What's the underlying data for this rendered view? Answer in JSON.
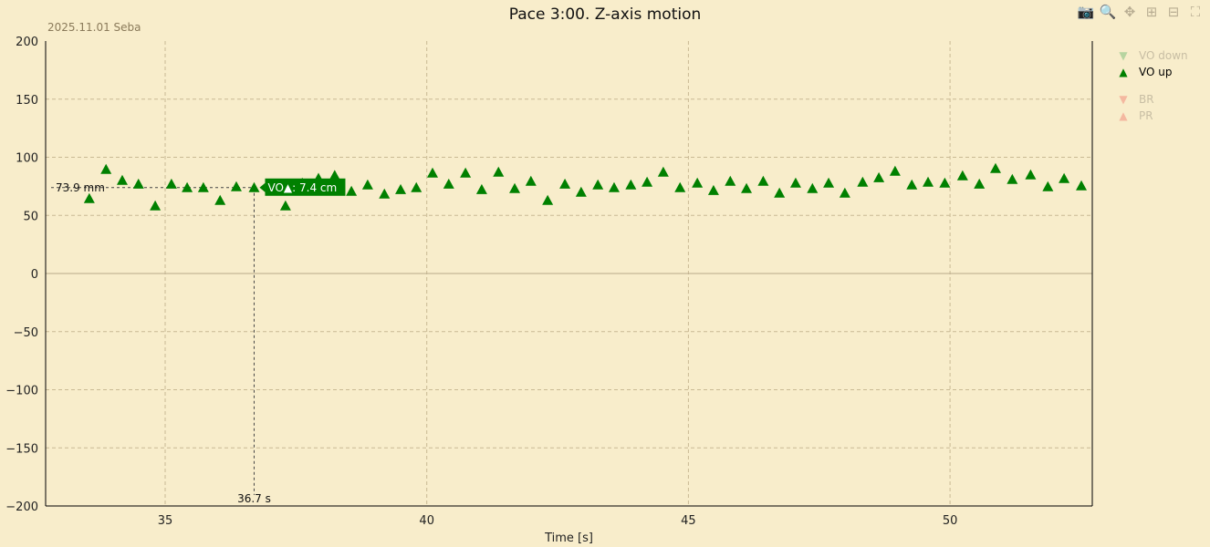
{
  "title": "Pace 3:00. Z-axis motion",
  "subtitle": "2025.11.01 Seba",
  "modebar": [
    "camera-icon",
    "zoom-icon",
    "pan-icon",
    "zoom-in-icon",
    "zoom-out-icon",
    "autoscale-icon"
  ],
  "legend": [
    {
      "label": "VO down",
      "symbol": "▼",
      "color": "#b7d4a0",
      "visible": false
    },
    {
      "label": "VO up",
      "symbol": "▲",
      "color": "#008000",
      "visible": true
    },
    {
      "label": "BR",
      "symbol": "▼",
      "color": "#f4b8a0",
      "visible": false
    },
    {
      "label": "PR",
      "symbol": "▲",
      "color": "#f4b8a0",
      "visible": false
    }
  ],
  "hover": {
    "y_label": "73.9 mm",
    "x_label": "36.7 s",
    "tooltip": "VO▲: 7.4 cm",
    "x": 36.7,
    "y": 73.9
  },
  "chart_data": {
    "type": "scatter",
    "title": "Pace 3:00. Z-axis motion",
    "xlabel": "Time [s]",
    "ylabel": "",
    "xlim": [
      32.7,
      52.7
    ],
    "ylim": [
      -200,
      200
    ],
    "xticks": [
      35,
      40,
      45,
      50
    ],
    "yticks": [
      200,
      150,
      100,
      50,
      0,
      -50,
      -100,
      -150,
      -200
    ],
    "grid": true,
    "legend_position": "right",
    "series": [
      {
        "name": "VO up",
        "marker": "triangle-up",
        "color": "#008000",
        "x": [
          33.55,
          33.87,
          34.18,
          34.49,
          34.81,
          35.12,
          35.42,
          35.73,
          36.05,
          36.36,
          36.7,
          36.99,
          37.3,
          37.62,
          37.93,
          38.24,
          38.56,
          38.87,
          39.19,
          39.5,
          39.8,
          40.11,
          40.42,
          40.74,
          41.05,
          41.37,
          41.68,
          41.99,
          42.31,
          42.64,
          42.95,
          43.27,
          43.58,
          43.9,
          44.21,
          44.52,
          44.84,
          45.17,
          45.48,
          45.8,
          46.11,
          46.43,
          46.74,
          47.05,
          47.37,
          47.68,
          47.99,
          48.33,
          48.64,
          48.95,
          49.27,
          49.58,
          49.9,
          50.24,
          50.56,
          50.87,
          51.19,
          51.54,
          51.87,
          52.18,
          52.51
        ],
        "y": [
          64.5,
          89.6,
          80.2,
          77.0,
          58.2,
          77.0,
          73.9,
          73.9,
          62.9,
          74.7,
          73.9,
          74.7,
          58.2,
          77.8,
          82.0,
          84.4,
          70.8,
          76.3,
          68.4,
          72.3,
          73.9,
          86.5,
          77.0,
          86.5,
          72.3,
          87.3,
          73.1,
          79.4,
          62.9,
          77.0,
          70.0,
          76.3,
          73.9,
          76.3,
          78.6,
          87.3,
          73.9,
          77.8,
          71.5,
          79.4,
          73.1,
          79.4,
          69.2,
          77.8,
          73.1,
          77.8,
          69.2,
          78.6,
          82.5,
          88.0,
          76.3,
          78.6,
          77.8,
          84.1,
          77.0,
          90.4,
          81.0,
          84.9,
          74.7,
          81.8,
          75.5
        ]
      }
    ]
  }
}
